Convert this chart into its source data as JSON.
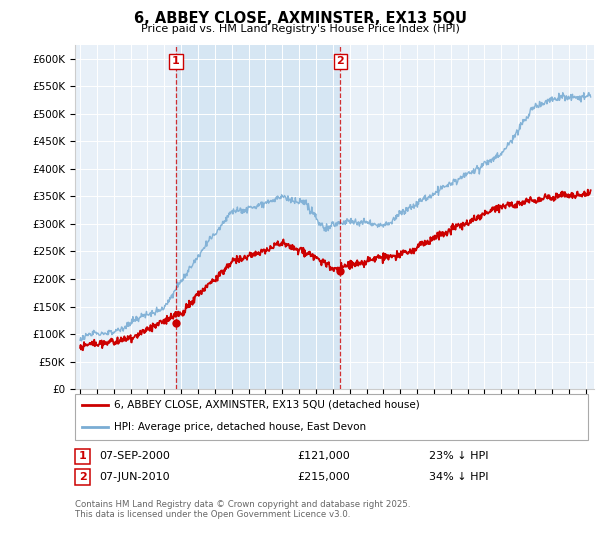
{
  "title": "6, ABBEY CLOSE, AXMINSTER, EX13 5QU",
  "subtitle": "Price paid vs. HM Land Registry's House Price Index (HPI)",
  "ylabel_ticks": [
    "£0",
    "£50K",
    "£100K",
    "£150K",
    "£200K",
    "£250K",
    "£300K",
    "£350K",
    "£400K",
    "£450K",
    "£500K",
    "£550K",
    "£600K"
  ],
  "ytick_vals": [
    0,
    50000,
    100000,
    150000,
    200000,
    250000,
    300000,
    350000,
    400000,
    450000,
    500000,
    550000,
    600000
  ],
  "ylim": [
    0,
    625000
  ],
  "xlim_start": 1994.7,
  "xlim_end": 2025.5,
  "hpi_color": "#7aadd4",
  "hpi_fill_color": "#ddeeff",
  "price_color": "#cc0000",
  "bg_color": "#e8f0f8",
  "marker1_date": 2000.69,
  "marker1_price": 121000,
  "marker2_date": 2010.44,
  "marker2_price": 215000,
  "legend_red_label": "6, ABBEY CLOSE, AXMINSTER, EX13 5QU (detached house)",
  "legend_blue_label": "HPI: Average price, detached house, East Devon",
  "ann1_date": "07-SEP-2000",
  "ann1_price": "£121,000",
  "ann1_hpi": "23% ↓ HPI",
  "ann2_date": "07-JUN-2010",
  "ann2_price": "£215,000",
  "ann2_hpi": "34% ↓ HPI",
  "footer": "Contains HM Land Registry data © Crown copyright and database right 2025.\nThis data is licensed under the Open Government Licence v3.0."
}
